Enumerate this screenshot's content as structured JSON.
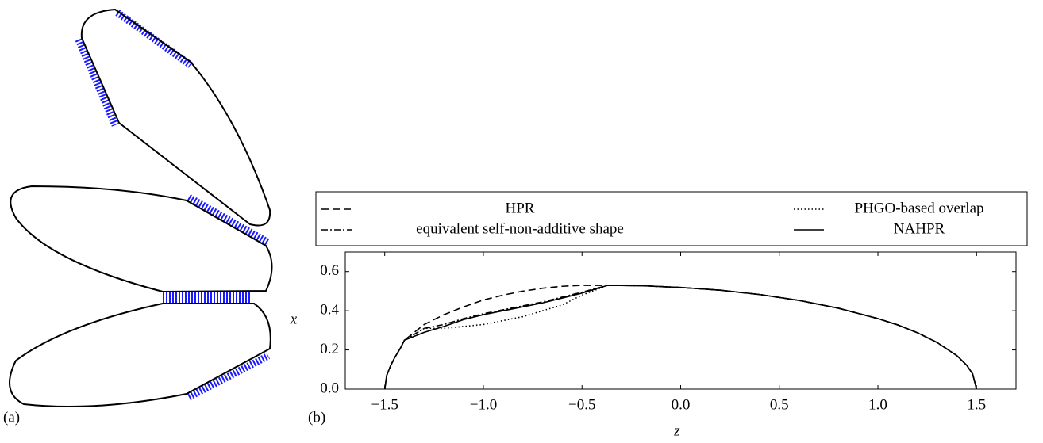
{
  "chart_data": {
    "type": "line",
    "panel_labels": [
      "(a)",
      "(b)"
    ],
    "x_label": "z",
    "y_label": "x",
    "x": [
      -1.5,
      -1.49,
      -1.47,
      -1.45,
      -1.42,
      -1.4,
      -1.3,
      -1.2,
      -1.1,
      -1.0,
      -0.9,
      -0.8,
      -0.7,
      -0.6,
      -0.5,
      -0.37,
      -0.2,
      0,
      0.2,
      0.4,
      0.6,
      0.8,
      1.0,
      1.1,
      1.2,
      1.3,
      1.4,
      1.45,
      1.48,
      1.5
    ],
    "series": [
      {
        "name": "HPR",
        "color": "#000000",
        "style": "dashed",
        "values": [
          0,
          0.07,
          0.12,
          0.16,
          0.21,
          0.25,
          0.33,
          0.38,
          0.42,
          0.455,
          0.48,
          0.5,
          0.515,
          0.525,
          0.53,
          0.53,
          0.528,
          0.519,
          0.505,
          0.483,
          0.453,
          0.413,
          0.36,
          0.328,
          0.288,
          0.238,
          0.171,
          0.122,
          0.078,
          0
        ]
      },
      {
        "name": "equivalent self-non-additive shape",
        "color": "#000000",
        "style": "dashdot",
        "values": [
          0,
          0.07,
          0.12,
          0.16,
          0.21,
          0.25,
          0.31,
          0.33,
          0.36,
          0.385,
          0.405,
          0.425,
          0.445,
          0.47,
          0.495,
          0.53,
          0.528,
          0.519,
          0.505,
          0.483,
          0.453,
          0.413,
          0.36,
          0.328,
          0.288,
          0.238,
          0.171,
          0.122,
          0.078,
          0
        ]
      },
      {
        "name": "PHGO-based overlap",
        "color": "#000000",
        "style": "dotted",
        "values": [
          0,
          0.07,
          0.12,
          0.16,
          0.21,
          0.25,
          0.31,
          0.31,
          0.32,
          0.33,
          0.35,
          0.37,
          0.4,
          0.43,
          0.48,
          0.53,
          0.528,
          0.519,
          0.505,
          0.483,
          0.453,
          0.413,
          0.36,
          0.328,
          0.288,
          0.238,
          0.171,
          0.122,
          0.078,
          0
        ]
      },
      {
        "name": "NAHPR",
        "color": "#000000",
        "style": "solid",
        "values": [
          0,
          0.07,
          0.12,
          0.16,
          0.21,
          0.25,
          0.29,
          0.32,
          0.355,
          0.38,
          0.4,
          0.42,
          0.44,
          0.465,
          0.49,
          0.53,
          0.528,
          0.519,
          0.505,
          0.483,
          0.453,
          0.413,
          0.36,
          0.328,
          0.288,
          0.238,
          0.171,
          0.122,
          0.078,
          0
        ]
      }
    ],
    "xlim": [
      -1.7,
      1.7
    ],
    "ylim": [
      0,
      0.7
    ],
    "xticks": [
      {
        "value": -1.5,
        "label": "−1.5"
      },
      {
        "value": -1,
        "label": "−1.0"
      },
      {
        "value": -0.5,
        "label": "−0.5"
      },
      {
        "value": 0,
        "label": "0.0"
      },
      0.5,
      {
        "value": 1,
        "label": "1.0"
      },
      1.5
    ],
    "yticks": [
      {
        "value": 0,
        "label": "0.0"
      },
      0.2,
      0.4,
      0.6
    ],
    "legend": "top"
  }
}
